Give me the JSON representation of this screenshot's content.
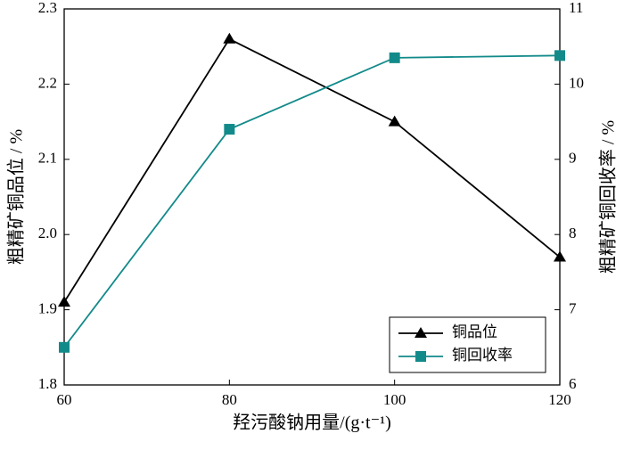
{
  "chart_data": {
    "type": "line",
    "x_label": "羟污酸钠用量/(g·t⁻¹)",
    "y_label": "粗精矿铜品位 / %",
    "y2_label": "粗精矿铜回收率 / %",
    "x": [
      60,
      80,
      100,
      120
    ],
    "xlim": [
      60,
      120
    ],
    "xticks": [
      60,
      80,
      100,
      120
    ],
    "ylim": [
      1.8,
      2.3
    ],
    "yticks": [
      1.8,
      1.9,
      {
        "value": 2,
        "label": "2.0"
      },
      2.1,
      2.2,
      2.3
    ],
    "y2lim": [
      6,
      11
    ],
    "y2ticks": [
      6,
      7,
      8,
      9,
      10,
      11
    ],
    "legend": "lower right",
    "series": [
      {
        "name": "铜品位",
        "color": "#000000",
        "marker": "triangle",
        "values": [
          1.91,
          2.26,
          2.15,
          1.97
        ]
      },
      {
        "name": "铜回收率",
        "color": "#138a8a",
        "marker": "square",
        "axis": "y2",
        "values": [
          6.5,
          9.4,
          10.35,
          10.38
        ]
      }
    ]
  }
}
